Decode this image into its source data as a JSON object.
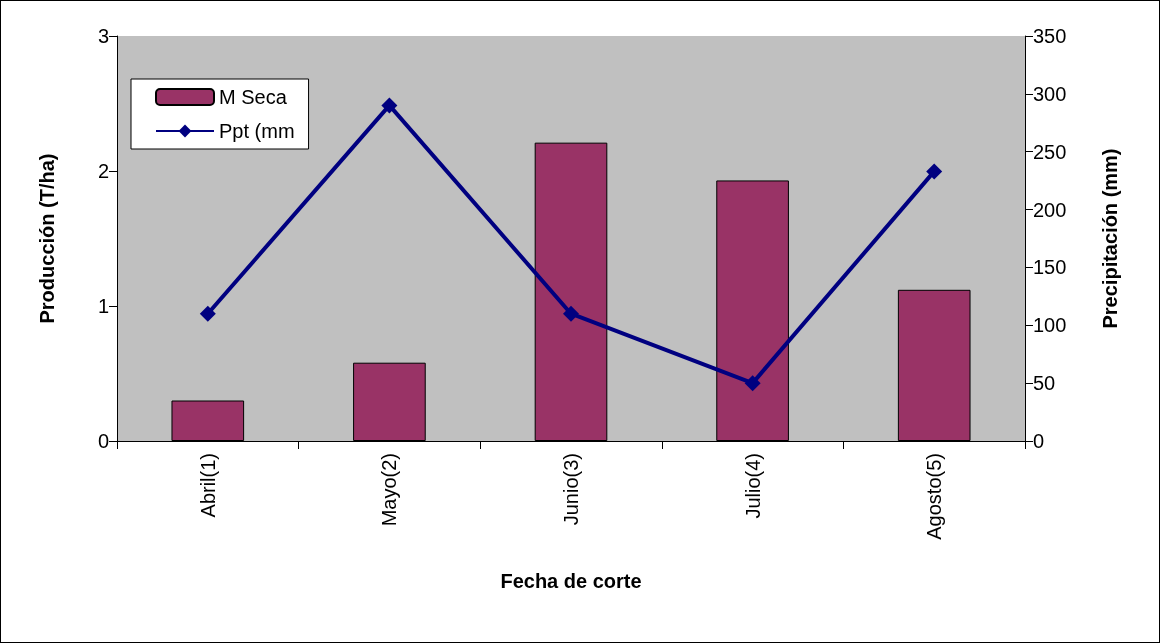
{
  "chart_data": {
    "type": "bar",
    "categories": [
      "Abril(1)",
      "Mayo(2)",
      "Junio(3)",
      "Julio(4)",
      "Agosto(5)"
    ],
    "series": [
      {
        "name": "M Seca",
        "color": "#993366",
        "values": [
          0.3,
          0.58,
          2.21,
          1.93,
          1.12
        ]
      },
      {
        "name": "Ppt (mm",
        "type": "line",
        "axis": "y2",
        "color": "#000080",
        "marker": "diamond",
        "values": [
          110,
          290,
          110,
          50,
          233
        ]
      }
    ],
    "xlabel": "Fecha de corte",
    "ylabel": "Producción (T/ha)",
    "y2label": "Precipitación (mm)",
    "ylim": [
      0,
      3
    ],
    "yticks": [
      0,
      1,
      2,
      3
    ],
    "y2lim": [
      0,
      350
    ],
    "y2ticks": [
      0,
      50,
      100,
      150,
      200,
      250,
      300,
      350
    ],
    "grid": false,
    "legend": "top left"
  }
}
